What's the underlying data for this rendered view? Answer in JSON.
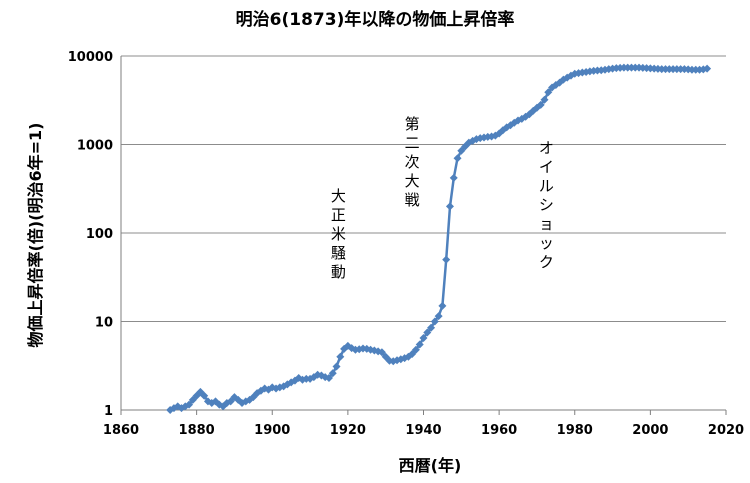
{
  "chart_data": {
    "type": "line",
    "title": "明治6(1873)年以降の物価上昇倍率",
    "xlabel": "西暦(年)",
    "ylabel": "物価上昇倍率(倍)(明治6年=1)",
    "xlim": [
      1860,
      2020
    ],
    "x_ticks": [
      "1860",
      "1880",
      "1900",
      "1920",
      "1940",
      "1960",
      "1980",
      "2000",
      "2020"
    ],
    "ylim": [
      1,
      10000
    ],
    "y_scale": "log",
    "y_ticks": [
      "1",
      "10",
      "100",
      "1000",
      "10000"
    ],
    "grid": "horizontal",
    "legend": "none",
    "line_color": "#4f81bd",
    "marker": "diamond",
    "annotations": [
      {
        "text": "大正米騒動",
        "x": 1917.5,
        "y": 230
      },
      {
        "text": "第二次大戦",
        "x": 1937,
        "y": 1500
      },
      {
        "text": "オイルショック",
        "x": 1972.5,
        "y": 800
      }
    ],
    "series": [
      {
        "x": [
          1873,
          1874,
          1875,
          1876,
          1877,
          1878,
          1879,
          1880,
          1881,
          1882,
          1883,
          1884,
          1885,
          1886,
          1887,
          1888,
          1889,
          1890,
          1891,
          1892,
          1893,
          1894,
          1895,
          1896,
          1897,
          1898,
          1899,
          1900,
          1901,
          1902,
          1903,
          1904,
          1905,
          1906,
          1907,
          1908,
          1909,
          1910,
          1911,
          1912,
          1913,
          1914,
          1915,
          1916,
          1917,
          1918,
          1919,
          1920,
          1921,
          1922,
          1923,
          1924,
          1925,
          1926,
          1927,
          1928,
          1929,
          1930,
          1931,
          1932,
          1933,
          1934,
          1935,
          1936,
          1937,
          1938,
          1939,
          1940,
          1941,
          1942,
          1943,
          1944,
          1945,
          1946,
          1947,
          1948,
          1949,
          1950,
          1951,
          1952,
          1953,
          1954,
          1955,
          1956,
          1957,
          1958,
          1959,
          1960,
          1961,
          1962,
          1963,
          1964,
          1965,
          1966,
          1967,
          1968,
          1969,
          1970,
          1971,
          1972,
          1973,
          1974,
          1975,
          1976,
          1977,
          1978,
          1979,
          1980,
          1981,
          1982,
          1983,
          1984,
          1985,
          1986,
          1987,
          1988,
          1989,
          1990,
          1991,
          1992,
          1993,
          1994,
          1995,
          1996,
          1997,
          1998,
          1999,
          2000,
          2001,
          2002,
          2003,
          2004,
          2005,
          2006,
          2007,
          2008,
          2009,
          2010,
          2011,
          2012,
          2013,
          2014,
          2015
        ],
        "y": [
          1.0,
          1.05,
          1.1,
          1.05,
          1.1,
          1.15,
          1.3,
          1.45,
          1.6,
          1.45,
          1.25,
          1.2,
          1.25,
          1.15,
          1.1,
          1.2,
          1.25,
          1.4,
          1.3,
          1.2,
          1.25,
          1.3,
          1.4,
          1.55,
          1.65,
          1.75,
          1.7,
          1.8,
          1.75,
          1.8,
          1.85,
          1.95,
          2.05,
          2.15,
          2.3,
          2.2,
          2.25,
          2.25,
          2.35,
          2.5,
          2.45,
          2.35,
          2.3,
          2.6,
          3.1,
          4.0,
          4.9,
          5.3,
          5.0,
          4.8,
          4.85,
          4.95,
          4.9,
          4.8,
          4.7,
          4.6,
          4.5,
          4.0,
          3.6,
          3.55,
          3.65,
          3.75,
          3.85,
          4.0,
          4.3,
          4.8,
          5.5,
          6.5,
          7.5,
          8.5,
          10,
          11.5,
          15,
          50,
          200,
          420,
          700,
          850,
          950,
          1050,
          1100,
          1150,
          1180,
          1200,
          1220,
          1230,
          1260,
          1330,
          1450,
          1560,
          1650,
          1760,
          1870,
          1950,
          2060,
          2200,
          2400,
          2600,
          2800,
          3200,
          3900,
          4400,
          4700,
          5000,
          5400,
          5700,
          6000,
          6300,
          6400,
          6500,
          6600,
          6700,
          6800,
          6850,
          6900,
          7000,
          7100,
          7200,
          7300,
          7350,
          7400,
          7400,
          7400,
          7400,
          7400,
          7350,
          7300,
          7250,
          7200,
          7150,
          7100,
          7100,
          7100,
          7100,
          7100,
          7100,
          7100,
          7050,
          7000,
          7000,
          7000,
          7050,
          7200
        ]
      }
    ]
  }
}
